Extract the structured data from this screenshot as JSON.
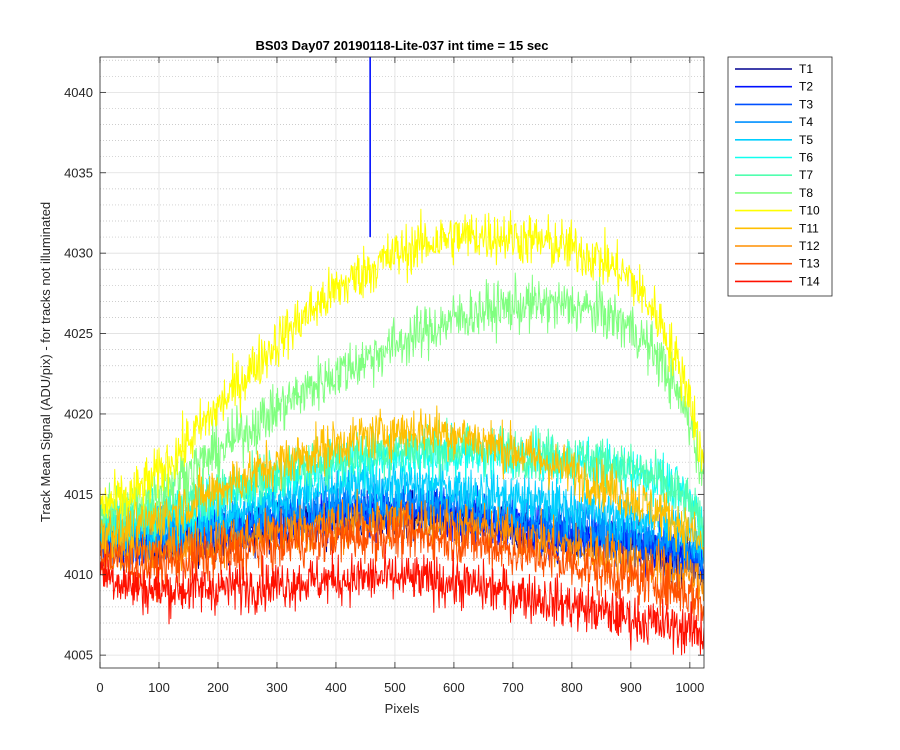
{
  "chart_data": {
    "type": "line",
    "title": "BS03 Day07 20190118-Lite-037 int time = 15 sec",
    "xlabel": "Pixels",
    "ylabel": "Track Mean Signal (ADU/pix) - for tracks not illuminated",
    "xlim": [
      0,
      1024
    ],
    "ylim": [
      4004.2,
      4042.2
    ],
    "xticks": [
      0,
      100,
      200,
      300,
      400,
      500,
      600,
      700,
      800,
      900,
      1000
    ],
    "yticks": [
      4005,
      4010,
      4015,
      4020,
      4025,
      4030,
      4035,
      4040
    ],
    "grid": true,
    "minor_grid": true,
    "legend_position": "outside-top-right",
    "x_profile": [
      0,
      50,
      100,
      150,
      200,
      250,
      300,
      350,
      400,
      450,
      500,
      550,
      600,
      650,
      700,
      750,
      800,
      850,
      900,
      950,
      1000,
      1024
    ],
    "spike": {
      "series": "T2",
      "x": 458,
      "y_top": 4042.2,
      "y_base": 4031
    },
    "series": [
      {
        "name": "T1",
        "color": "#00008f",
        "noise": 1.4,
        "values": [
          4012.5,
          4012.0,
          4012.0,
          4012.2,
          4012.5,
          4012.7,
          4013.0,
          4013.2,
          4013.4,
          4013.6,
          4013.7,
          4013.6,
          4013.4,
          4013.2,
          4012.9,
          4012.6,
          4012.3,
          4012.0,
          4011.8,
          4011.5,
          4010.9,
          4010.2
        ]
      },
      {
        "name": "T2",
        "color": "#0010ff",
        "noise": 1.4,
        "values": [
          4012.0,
          4011.8,
          4012.0,
          4012.3,
          4012.6,
          4012.9,
          4013.2,
          4013.5,
          4013.7,
          4013.9,
          4014.0,
          4013.9,
          4013.7,
          4013.4,
          4013.1,
          4012.8,
          4012.5,
          4012.2,
          4011.9,
          4011.6,
          4011.0,
          4010.3
        ]
      },
      {
        "name": "T3",
        "color": "#0050ff",
        "noise": 1.4,
        "values": [
          4012.3,
          4012.0,
          4012.2,
          4012.5,
          4012.8,
          4013.1,
          4013.4,
          4013.6,
          4013.8,
          4014.0,
          4014.0,
          4013.9,
          4013.7,
          4013.5,
          4013.2,
          4012.9,
          4012.6,
          4012.3,
          4012.0,
          4011.7,
          4011.1,
          4010.4
        ]
      },
      {
        "name": "T4",
        "color": "#0090ff",
        "noise": 1.4,
        "values": [
          4012.8,
          4012.4,
          4012.6,
          4012.9,
          4013.2,
          4013.5,
          4013.9,
          4014.2,
          4014.4,
          4014.6,
          4014.7,
          4014.6,
          4014.4,
          4014.1,
          4013.8,
          4013.5,
          4013.2,
          4012.9,
          4012.6,
          4012.3,
          4011.7,
          4011.0
        ]
      },
      {
        "name": "T5",
        "color": "#00cfff",
        "noise": 1.4,
        "values": [
          4013.0,
          4012.8,
          4013.0,
          4013.4,
          4013.8,
          4014.2,
          4014.7,
          4015.1,
          4015.4,
          4015.6,
          4015.7,
          4015.6,
          4015.4,
          4015.1,
          4014.8,
          4014.5,
          4014.2,
          4013.9,
          4013.6,
          4013.3,
          4012.7,
          4011.8
        ]
      },
      {
        "name": "T6",
        "color": "#10ffef",
        "noise": 1.4,
        "values": [
          4013.5,
          4013.2,
          4013.6,
          4014.2,
          4014.8,
          4015.4,
          4016.0,
          4016.5,
          4016.9,
          4017.2,
          4017.4,
          4017.5,
          4017.5,
          4017.4,
          4017.3,
          4017.2,
          4017.0,
          4016.8,
          4016.5,
          4015.9,
          4014.6,
          4013.0
        ]
      },
      {
        "name": "T7",
        "color": "#50ffaf",
        "noise": 1.4,
        "values": [
          4013.8,
          4013.5,
          4014.0,
          4014.6,
          4015.2,
          4015.8,
          4016.4,
          4016.9,
          4017.3,
          4017.6,
          4017.8,
          4017.9,
          4017.9,
          4017.8,
          4017.7,
          4017.5,
          4017.3,
          4017.0,
          4016.6,
          4015.8,
          4014.4,
          4012.6
        ]
      },
      {
        "name": "T8",
        "color": "#80ff80",
        "noise": 1.5,
        "values": [
          4014.0,
          4014.2,
          4015.2,
          4016.4,
          4017.7,
          4019.0,
          4020.3,
          4021.5,
          4022.5,
          4023.4,
          4024.3,
          4025.1,
          4025.9,
          4026.4,
          4026.7,
          4026.8,
          4026.7,
          4026.3,
          4025.4,
          4023.4,
          4019.6,
          4015.8
        ]
      },
      {
        "name": "T10",
        "color": "#ffff00",
        "noise": 1.5,
        "values": [
          4014.3,
          4014.8,
          4016.3,
          4018.3,
          4020.4,
          4022.5,
          4024.5,
          4026.2,
          4027.7,
          4028.9,
          4029.9,
          4030.6,
          4031.0,
          4031.1,
          4031.0,
          4030.7,
          4030.3,
          4029.6,
          4028.4,
          4025.8,
          4021.2,
          4016.5
        ]
      },
      {
        "name": "T11",
        "color": "#ffbf00",
        "noise": 1.4,
        "values": [
          4012.9,
          4012.8,
          4013.5,
          4014.4,
          4015.3,
          4016.2,
          4016.9,
          4017.5,
          4018.1,
          4018.6,
          4018.9,
          4019.0,
          4018.8,
          4018.3,
          4017.7,
          4017.1,
          4016.4,
          4015.6,
          4014.8,
          4013.9,
          4012.7,
          4011.7
        ]
      },
      {
        "name": "T12",
        "color": "#ff8f00",
        "noise": 1.4,
        "values": [
          4011.9,
          4011.3,
          4011.4,
          4011.7,
          4012.0,
          4012.3,
          4012.6,
          4012.9,
          4013.1,
          4013.3,
          4013.4,
          4013.3,
          4013.1,
          4012.8,
          4012.5,
          4012.1,
          4011.7,
          4011.3,
          4010.9,
          4010.5,
          4009.9,
          4009.2
        ]
      },
      {
        "name": "T13",
        "color": "#ff5000",
        "noise": 1.4,
        "values": [
          4011.3,
          4010.6,
          4010.6,
          4010.9,
          4011.2,
          4011.5,
          4011.8,
          4012.1,
          4012.3,
          4012.4,
          4012.5,
          4012.4,
          4012.2,
          4011.9,
          4011.5,
          4011.1,
          4010.7,
          4010.2,
          4009.8,
          4009.4,
          4008.8,
          4008.0
        ]
      },
      {
        "name": "T14",
        "color": "#ff1000",
        "noise": 1.4,
        "values": [
          4010.3,
          4009.3,
          4009.0,
          4009.1,
          4009.2,
          4009.3,
          4009.4,
          4009.6,
          4009.7,
          4009.8,
          4009.8,
          4009.7,
          4009.5,
          4009.2,
          4008.9,
          4008.5,
          4008.1,
          4007.7,
          4007.3,
          4006.9,
          4006.6,
          4006.3
        ]
      }
    ]
  }
}
